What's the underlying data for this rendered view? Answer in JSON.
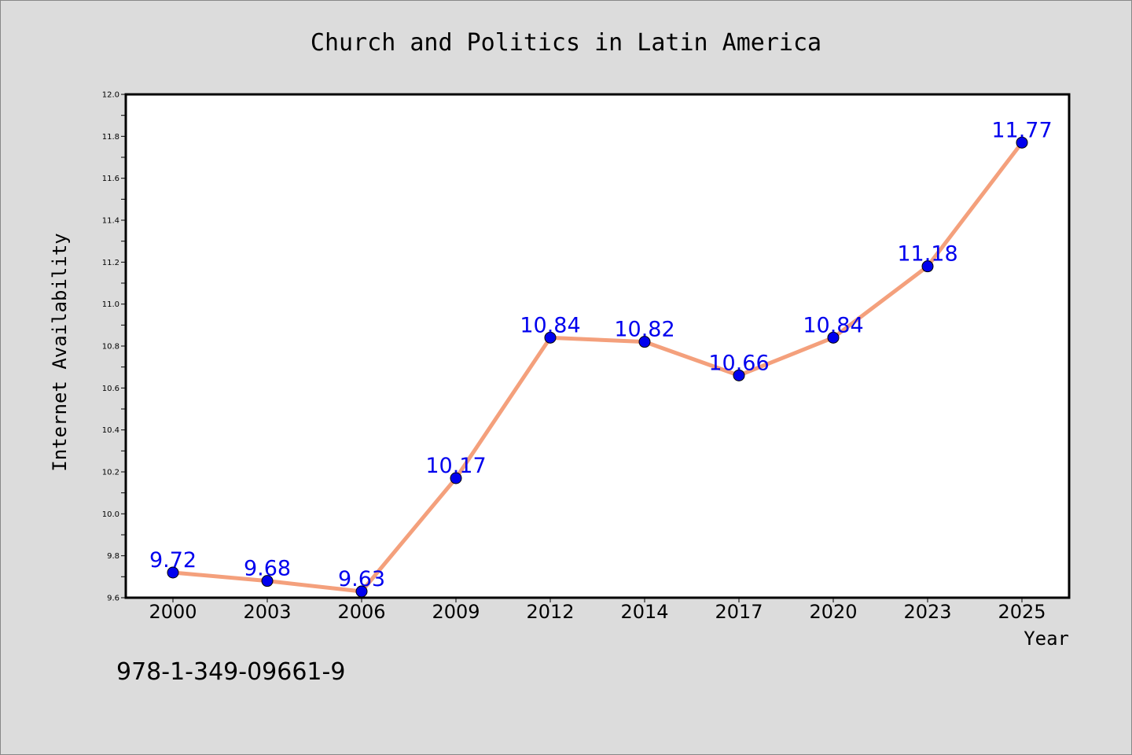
{
  "chart_data": {
    "type": "line",
    "title": "Church and Politics in Latin America",
    "xlabel": "Year",
    "ylabel": "Internet Availability",
    "categories": [
      "2000",
      "2003",
      "2006",
      "2009",
      "2012",
      "2014",
      "2017",
      "2020",
      "2023",
      "2025"
    ],
    "series": [
      {
        "values": [
          9.72,
          9.68,
          9.63,
          10.17,
          10.84,
          10.82,
          10.66,
          10.84,
          11.18,
          11.77
        ]
      }
    ],
    "data_labels": [
      "9.72",
      "9.68",
      "9.63",
      "10.17",
      "10.84",
      "10.82",
      "10.66",
      "10.84",
      "11.18",
      "11.77"
    ],
    "ylim": [
      9.6,
      12.0
    ],
    "yticks": [
      "9.6",
      "9.8",
      "10.0",
      "10.2",
      "10.4",
      "10.6",
      "10.8",
      "11.0",
      "11.2",
      "11.4",
      "11.6",
      "11.8",
      "12.0"
    ],
    "grid": false,
    "legend": "none",
    "colors": {
      "line": "#f4a07c",
      "marker": "#0000ee",
      "data_label": "#0000ee",
      "background": "#dcdcdc",
      "plot_background": "#ffffff"
    }
  },
  "footer": {
    "isbn": "978-1-349-09661-9"
  }
}
